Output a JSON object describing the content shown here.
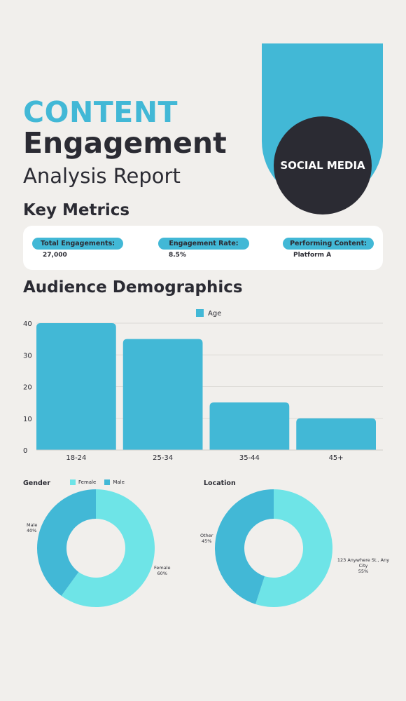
{
  "header": {
    "title_accent": "CONTENT",
    "title_main": "Engagement",
    "subtitle": "Analysis Report",
    "badge": "SOCIAL MEDIA"
  },
  "key_metrics": {
    "heading": "Key Metrics",
    "items": [
      {
        "label": "Total Engagements:",
        "value": "27,000"
      },
      {
        "label": "Engagement Rate:",
        "value": "8.5%"
      },
      {
        "label": "Performing Content:",
        "value": "Platform A"
      }
    ]
  },
  "demographics": {
    "heading": "Audience Demographics"
  },
  "colors": {
    "accent": "#42b8d6",
    "light": "#6ee4e7",
    "dark": "#2b2b33",
    "background": "#f1efec"
  },
  "chart_data": [
    {
      "type": "bar",
      "categories": [
        "18-24",
        "25-34",
        "35-44",
        "45+"
      ],
      "series": [
        {
          "name": "Age",
          "values": [
            40,
            35,
            15,
            10
          ]
        }
      ],
      "yticks": [
        "0",
        "10",
        "20",
        "30",
        "40"
      ],
      "ylim": [
        0,
        40
      ],
      "grid": true,
      "legend": "top-center"
    },
    {
      "type": "pie",
      "title": "Gender",
      "legend": [
        "Female",
        "Male"
      ],
      "slices": [
        {
          "label": "Female",
          "percent": "60%",
          "value": 60
        },
        {
          "label": "Male",
          "percent": "40%",
          "value": 40
        }
      ]
    },
    {
      "type": "pie",
      "title": "Location",
      "slices": [
        {
          "label": "123 Anywhere St., Any City",
          "percent": "55%",
          "value": 55
        },
        {
          "label": "Other",
          "percent": "45%",
          "value": 45
        }
      ]
    }
  ]
}
